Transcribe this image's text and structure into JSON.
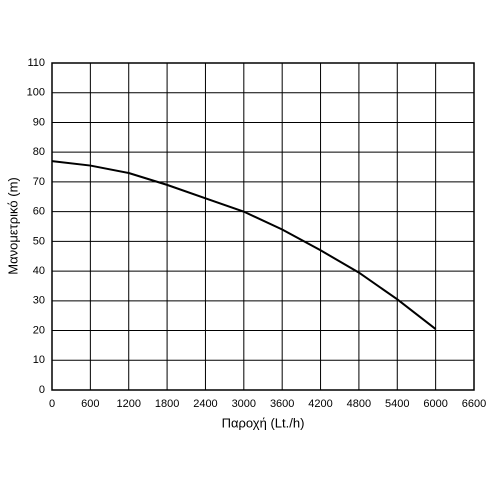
{
  "chart_data": {
    "type": "line",
    "x_label": "Παροχή (Lt./h)",
    "y_label": "Μανομετρικό  (m)",
    "x": [
      0,
      600,
      1200,
      1800,
      2400,
      3000,
      3600,
      4200,
      4800,
      5400,
      6000
    ],
    "series": [
      {
        "name": "curve",
        "color": "#000000",
        "values": [
          77,
          75.5,
          73,
          69,
          64.5,
          60,
          54,
          47,
          39.5,
          30.5,
          20.5
        ]
      }
    ],
    "xlim": [
      0,
      6600
    ],
    "xticks": [
      0,
      600,
      1200,
      1800,
      2400,
      3000,
      3600,
      4200,
      4800,
      5400,
      6000,
      6600
    ],
    "ylim": [
      0,
      110
    ],
    "yticks": [
      0,
      10,
      20,
      30,
      40,
      50,
      60,
      70,
      80,
      90,
      100,
      110
    ],
    "grid": true
  }
}
